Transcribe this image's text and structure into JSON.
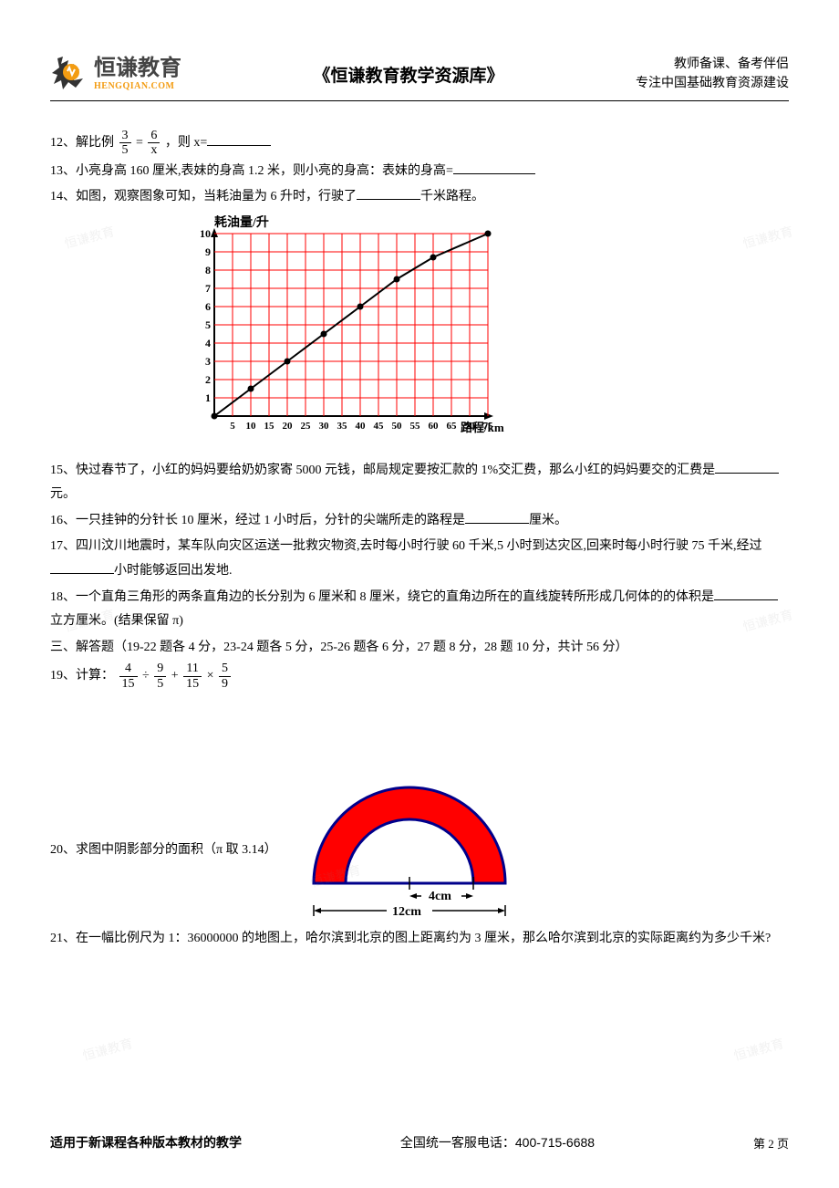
{
  "header": {
    "logo_title": "恒谦教育",
    "logo_sub": "HENGQIAN.COM",
    "center": "《恒谦教育教学资源库》",
    "right_line1": "教师备课、备考伴侣",
    "right_line2": "专注中国基础教育资源建设"
  },
  "q12": {
    "prefix": "12、解比例",
    "frac1_num": "3",
    "frac1_den": "5",
    "eq": "=",
    "frac2_num": "6",
    "frac2_den": "x",
    "suffix": "，则 x="
  },
  "q13": "13、小亮身高 160 厘米,表妹的身高 1.2 米，则小亮的身高：表妹的身高=",
  "q14_a": "14、如图，观察图象可知，当耗油量为 6 升时，行驶了",
  "q14_b": "千米路程。",
  "chart": {
    "y_label": "耗油量/升",
    "x_label": "路程/km",
    "y_ticks": [
      "1",
      "2",
      "3",
      "4",
      "5",
      "6",
      "7",
      "8",
      "9",
      "10"
    ],
    "x_ticks": [
      "5",
      "10",
      "15",
      "20",
      "25",
      "30",
      "35",
      "40",
      "45",
      "50",
      "55",
      "60",
      "65",
      "70",
      "75"
    ],
    "grid_color": "#ff0000",
    "line_color": "#000000",
    "points": [
      [
        0,
        0
      ],
      [
        10,
        1.5
      ],
      [
        20,
        3
      ],
      [
        30,
        4.5
      ],
      [
        40,
        6
      ],
      [
        50,
        7.5
      ],
      [
        60,
        8.7
      ],
      [
        75,
        10
      ]
    ]
  },
  "q15_a": "15、快过春节了，小红的妈妈要给奶奶家寄 5000 元钱，邮局规定要按汇款的 1%交汇费，那么小红的妈妈要交的汇费是",
  "q15_b": "元。",
  "q16_a": "16、一只挂钟的分针长 10 厘米，经过 1 小时后，分针的尖端所走的路程是",
  "q16_b": "厘米。",
  "q17_a": "17、四川汶川地震时，某车队向灾区运送一批救灾物资,去时每小时行驶 60 千米,5 小时到达灾区,回来时每小时行驶 75 千米,经过",
  "q17_b": "小时能够返回出发地.",
  "q18_a": "18、一个直角三角形的两条直角边的长分别为 6 厘米和 8 厘米，绕它的直角边所在的直线旋转所形成几何体的的体积是",
  "q18_b": "立方厘米。(结果保留 π)",
  "section3": "三、解答题（19-22 题各 4 分，23-24 题各 5 分，25-26 题各 6 分，27 题 8 分，28 题 10 分，共计 56 分）",
  "q19": {
    "prefix": "19、计算：",
    "f1n": "4",
    "f1d": "15",
    "op1": "÷",
    "f2n": "9",
    "f2d": "5",
    "op2": "+",
    "f3n": "11",
    "f3d": "15",
    "op3": "×",
    "f4n": "5",
    "f4d": "9"
  },
  "q20": "20、求图中阴影部分的面积（π 取 3.14）",
  "annulus": {
    "outer_color": "#ff0000",
    "inner_color": "#ffffff",
    "outline": "#00008b",
    "label_inner": "4cm",
    "label_outer": "12cm"
  },
  "q21": "21、在一幅比例尺为 1：36000000 的地图上，哈尔滨到北京的图上距离约为 3 厘米，那么哈尔滨到北京的实际距离约为多少千米?",
  "footer": {
    "left": "适用于新课程各种版本教材的教学",
    "center": "全国统一客服电话：400-715-6688",
    "right": "第 2 页"
  },
  "watermark_text": "恒谦教育"
}
